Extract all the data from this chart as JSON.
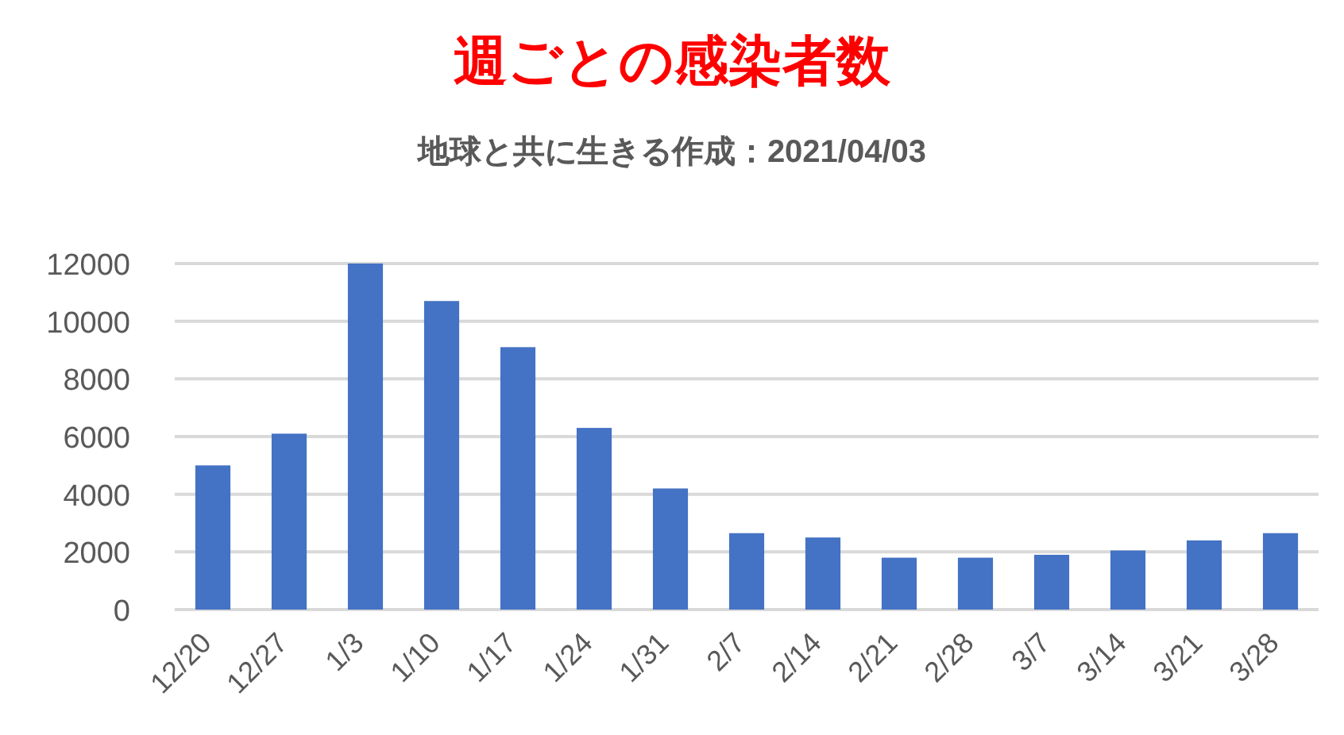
{
  "chart_data": {
    "type": "bar",
    "title": "週ごとの感染者数",
    "subtitle": "地球と共に生きる作成：2021/04/03",
    "categories": [
      "12/20",
      "12/27",
      "1/3",
      "1/10",
      "1/17",
      "1/24",
      "1/31",
      "2/7",
      "2/14",
      "2/21",
      "2/28",
      "3/7",
      "3/14",
      "3/21",
      "3/28"
    ],
    "values": [
      5000,
      6100,
      12000,
      10700,
      9100,
      6300,
      4200,
      2650,
      2500,
      1800,
      1800,
      1900,
      2050,
      2400,
      2650
    ],
    "color": "#4472c4",
    "ylim": [
      0,
      12000
    ],
    "yticks": [
      0,
      2000,
      4000,
      6000,
      8000,
      10000,
      12000
    ],
    "grid": "y"
  }
}
